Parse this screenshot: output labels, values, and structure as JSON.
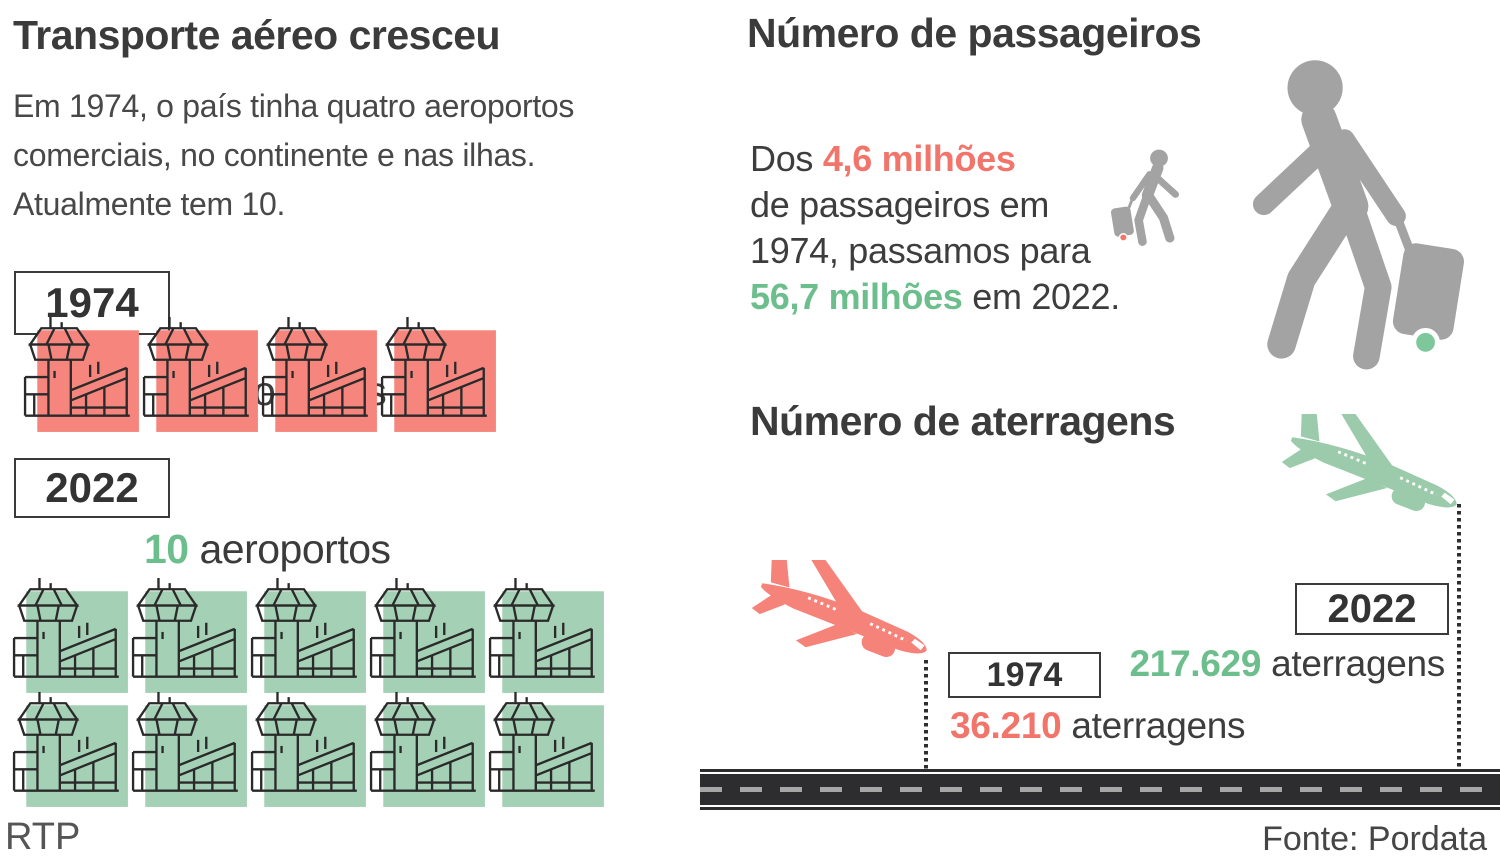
{
  "left": {
    "title": "Transporte aéreo cresceu",
    "subtitle_lines": [
      "Em 1974, o país tinha quatro aeroportos",
      "comerciais, no continente e nas ilhas.",
      "Atualmente tem 10."
    ],
    "box_1974": "1974",
    "box_2022": "2022",
    "label_1974": {
      "number": "4",
      "word": " aeroportos"
    },
    "label_2022": {
      "number": "10",
      "word": " aeroportos"
    },
    "credit": "RTP"
  },
  "right": {
    "passengers_title": "Número de passageiros",
    "passengers_text": {
      "l1_pre": "Dos ",
      "l1_red": "4,6 milhões",
      "l2": "de passageiros em",
      "l3": "1974, passamos para",
      "l4_green": "56,7 milhões",
      "l4_post": " em 2022."
    },
    "aterragens_title": "Número de aterragens",
    "box_1974": "1974",
    "box_2022": "2022",
    "landings_1974": {
      "number": "36.210",
      "word": " aterragens"
    },
    "landings_2022": {
      "number": "217.629",
      "word": " aterragens"
    },
    "source": "Fonte: Pordata"
  },
  "airports": {
    "y1974": {
      "count": 4
    },
    "y2022": {
      "count": 10
    }
  },
  "icons": [
    "airport-tower-icon",
    "plane-landing-icon",
    "passenger-with-luggage-icon",
    "runway-graphic"
  ],
  "colors": {
    "dark_text": "#3b3b3b",
    "salmon_text": "#f2756c",
    "green_text": "#6dbe8d",
    "salmon_square": "#f6867d",
    "green_square": "#a4d1b5",
    "salmon_plane": "#f5837a",
    "green_plane": "#9bcbaa",
    "person_gray": "#a3a3a3",
    "wheel_green": "#7ec79b",
    "wheel_red": "#f2756c",
    "runway": "#2d2d30"
  },
  "chart_data": [
    {
      "type": "pictogram",
      "title": "Aeroportos comerciais",
      "categories": [
        "1974",
        "2022"
      ],
      "values": [
        4,
        10
      ],
      "unit": "aeroportos"
    },
    {
      "type": "pictogram",
      "title": "Número de passageiros",
      "categories": [
        "1974",
        "2022"
      ],
      "values": [
        4600000,
        56700000
      ],
      "value_labels": [
        "4,6 milhões",
        "56,7 milhões"
      ]
    },
    {
      "type": "pictogram",
      "title": "Número de aterragens",
      "categories": [
        "1974",
        "2022"
      ],
      "values": [
        36210,
        217629
      ],
      "unit": "aterragens"
    }
  ]
}
